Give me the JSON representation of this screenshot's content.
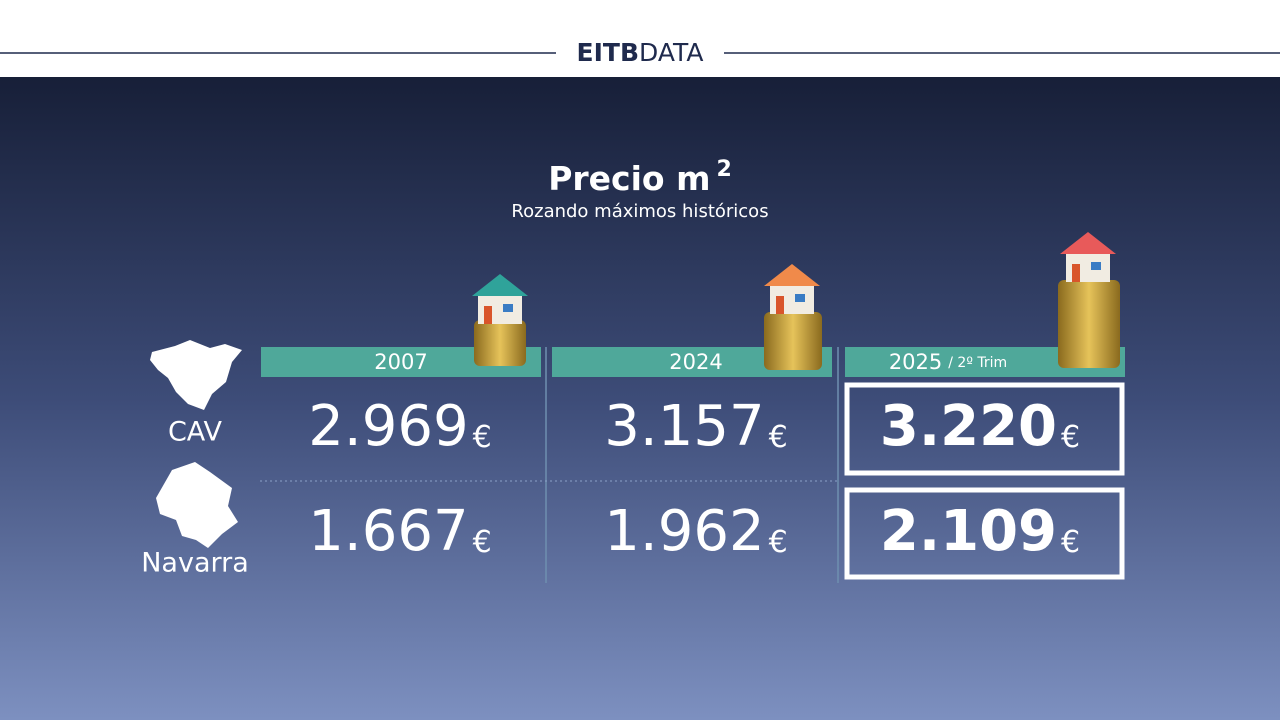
{
  "header": {
    "brand_bold": "EITB",
    "brand_light": "DATA"
  },
  "title": {
    "main": "Precio m",
    "superscript": "2",
    "subtitle": "Rozando máximos históricos"
  },
  "table": {
    "columns": [
      {
        "label": "2007"
      },
      {
        "label": "2024"
      },
      {
        "label": "2025",
        "note": "/ 2º Trim"
      }
    ],
    "currency": "€",
    "rows": [
      {
        "region": "CAV",
        "values": [
          "2.969",
          "3.157",
          "3.220"
        ]
      },
      {
        "region": "Navarra",
        "values": [
          "1.667",
          "1.962",
          "2.109"
        ]
      }
    ]
  }
}
